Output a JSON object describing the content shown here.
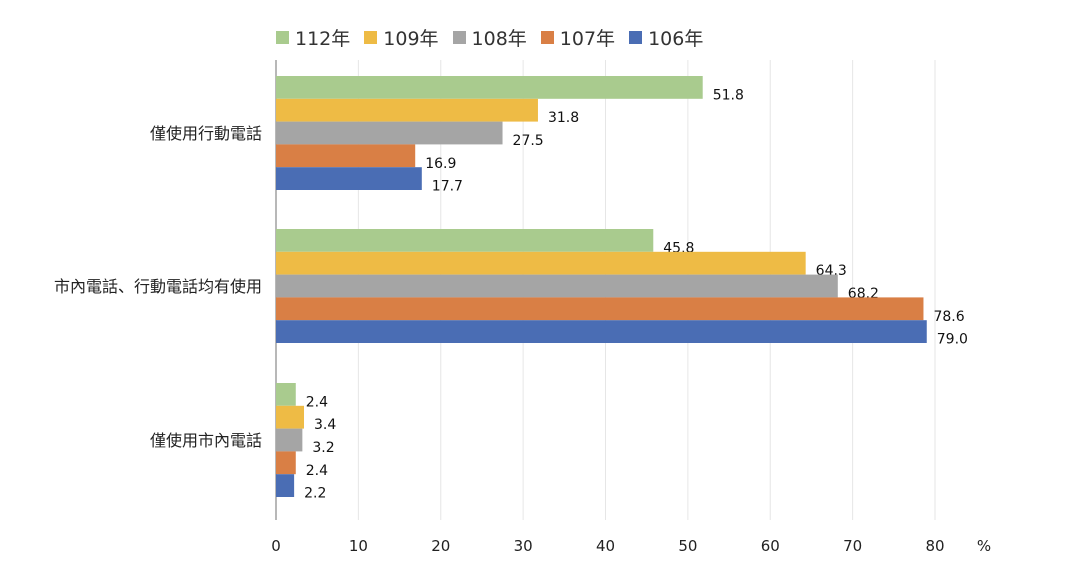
{
  "chart_data": {
    "type": "bar",
    "orientation": "horizontal",
    "title": "",
    "xlabel": "",
    "unit_label": "%",
    "xlim": [
      0,
      80
    ],
    "xticks": [
      "0",
      "10",
      "20",
      "30",
      "40",
      "50",
      "60",
      "70",
      "80"
    ],
    "grid": true,
    "legend_position": "top",
    "categories": [
      "僅使用行動電話",
      "市內電話、行動電話均有使用",
      "僅使用市內電話"
    ],
    "series": [
      {
        "name": "112年",
        "color": "#a9cb8e",
        "values": [
          51.8,
          45.8,
          2.4
        ]
      },
      {
        "name": "109年",
        "color": "#eebb45",
        "values": [
          31.8,
          64.3,
          3.4
        ]
      },
      {
        "name": "108年",
        "color": "#a5a5a5",
        "values": [
          27.5,
          68.2,
          3.2
        ]
      },
      {
        "name": "107年",
        "color": "#d97f45",
        "values": [
          16.9,
          78.6,
          2.4
        ]
      },
      {
        "name": "106年",
        "color": "#4a6db4",
        "values": [
          17.7,
          79.0,
          2.2
        ]
      }
    ]
  }
}
